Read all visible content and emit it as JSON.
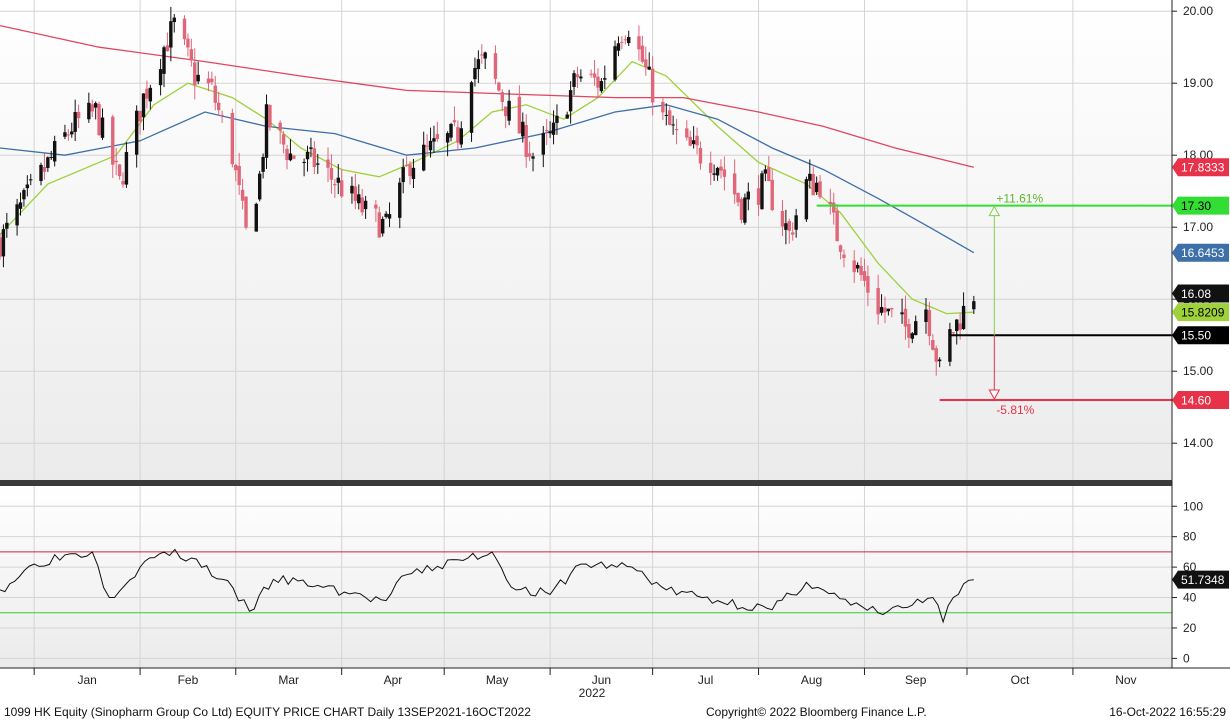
{
  "footer": {
    "left": "1099 HK Equity (Sinopharm Group Co Ltd) EQUITY PRICE CHART  Daily 13SEP2021-16OCT2022",
    "center": "Copyright© 2022 Bloomberg Finance L.P.",
    "right": "16-Oct-2022 16:55:29"
  },
  "colors": {
    "candle_up": "#111111",
    "candle_down": "#e0667a",
    "ma_short": "#9ed13c",
    "ma_mid": "#3d6fa8",
    "ma_long": "#e0455f",
    "level_green": "#33dd33",
    "level_black": "#000000",
    "level_red": "#e8324a",
    "rsi_line": "#111111",
    "rsi_upper": "#c8283c",
    "rsi_lower": "#33cc33"
  },
  "chart_data": [
    {
      "type": "candlestick",
      "panel": "price",
      "x_range": [
        "2021-12-22",
        "2022-11-30"
      ],
      "ylim": [
        13.6,
        20.1
      ],
      "y_ticks": [
        "20.00",
        "19.00",
        "18.00",
        "17.00",
        "16.00",
        "15.00",
        "14.00"
      ],
      "x_ticks": [
        "Jan",
        "Feb",
        "Mar",
        "Apr",
        "May",
        "Jun",
        "Jul",
        "Aug",
        "Sep",
        "Oct",
        "Nov"
      ],
      "x_ticks_dates": [
        "2022-01-01",
        "2022-02-01",
        "2022-03-01",
        "2022-04-01",
        "2022-05-01",
        "2022-06-01",
        "2022-07-01",
        "2022-08-01",
        "2022-09-01",
        "2022-10-01",
        "2022-11-01"
      ],
      "year_label": "2022",
      "tags": [
        {
          "value": "17.8333",
          "y": 17.8333,
          "bg": "#e8324a",
          "fg": "#ffffff"
        },
        {
          "value": "17.30",
          "y": 17.3,
          "bg": "#33dd33",
          "fg": "#000000"
        },
        {
          "value": "16.6453",
          "y": 16.6453,
          "bg": "#3d6fa8",
          "fg": "#ffffff"
        },
        {
          "value": "16.08",
          "y": 16.08,
          "bg": "#111111",
          "fg": "#ffffff"
        },
        {
          "value": "15.8209",
          "y": 15.8209,
          "bg": "#9ed13c",
          "fg": "#000000"
        },
        {
          "value": "15.50",
          "y": 15.5,
          "bg": "#000000",
          "fg": "#ffffff"
        },
        {
          "value": "14.60",
          "y": 14.6,
          "bg": "#e8324a",
          "fg": "#ffffff"
        }
      ],
      "levels": [
        {
          "y": 17.3,
          "from": "2022-08-18",
          "color": "#33dd33"
        },
        {
          "y": 15.5,
          "from": "2022-09-26",
          "color": "#000000"
        },
        {
          "y": 14.6,
          "from": "2022-09-23",
          "color": "#e8324a"
        }
      ],
      "annotations": [
        {
          "text": "+11.61%",
          "x": "2022-10-09",
          "y": 17.3,
          "color": "#5cb82a"
        },
        {
          "text": "-5.81%",
          "x": "2022-10-09",
          "y": 14.6,
          "color": "#e8324a"
        }
      ],
      "anchors": [
        {
          "date": "2021-12-22",
          "close": 16.8
        },
        {
          "date": "2022-01-04",
          "close": 17.8
        },
        {
          "date": "2022-01-12",
          "close": 18.4
        },
        {
          "date": "2022-01-19",
          "close": 18.6
        },
        {
          "date": "2022-01-26",
          "close": 17.6
        },
        {
          "date": "2022-02-02",
          "close": 18.8
        },
        {
          "date": "2022-02-08",
          "close": 19.5
        },
        {
          "date": "2022-02-11",
          "close": 19.8
        },
        {
          "date": "2022-02-17",
          "close": 19.1
        },
        {
          "date": "2022-02-22",
          "close": 18.9
        },
        {
          "date": "2022-02-28",
          "close": 18.0
        },
        {
          "date": "2022-03-04",
          "close": 16.9
        },
        {
          "date": "2022-03-08",
          "close": 17.7
        },
        {
          "date": "2022-03-10",
          "close": 18.5
        },
        {
          "date": "2022-03-17",
          "close": 18.0
        },
        {
          "date": "2022-03-24",
          "close": 17.9
        },
        {
          "date": "2022-03-31",
          "close": 17.6
        },
        {
          "date": "2022-04-08",
          "close": 17.2
        },
        {
          "date": "2022-04-14",
          "close": 17.0
        },
        {
          "date": "2022-04-21",
          "close": 17.9
        },
        {
          "date": "2022-04-28",
          "close": 18.1
        },
        {
          "date": "2022-05-05",
          "close": 18.3
        },
        {
          "date": "2022-05-09",
          "close": 19.2
        },
        {
          "date": "2022-05-13",
          "close": 19.3
        },
        {
          "date": "2022-05-20",
          "close": 18.6
        },
        {
          "date": "2022-05-27",
          "close": 18.0
        },
        {
          "date": "2022-06-02",
          "close": 18.3
        },
        {
          "date": "2022-06-09",
          "close": 19.1
        },
        {
          "date": "2022-06-16",
          "close": 19.0
        },
        {
          "date": "2022-06-21",
          "close": 19.7
        },
        {
          "date": "2022-06-24",
          "close": 19.8
        },
        {
          "date": "2022-06-28",
          "close": 19.3
        },
        {
          "date": "2022-07-04",
          "close": 18.5
        },
        {
          "date": "2022-07-11",
          "close": 18.1
        },
        {
          "date": "2022-07-20",
          "close": 17.9
        },
        {
          "date": "2022-07-27",
          "close": 17.3
        },
        {
          "date": "2022-08-03",
          "close": 17.6
        },
        {
          "date": "2022-08-10",
          "close": 16.9
        },
        {
          "date": "2022-08-15",
          "close": 17.6
        },
        {
          "date": "2022-08-19",
          "close": 17.6
        },
        {
          "date": "2022-08-24",
          "close": 16.9
        },
        {
          "date": "2022-08-30",
          "close": 16.4
        },
        {
          "date": "2022-09-05",
          "close": 15.9
        },
        {
          "date": "2022-09-13",
          "close": 15.6
        },
        {
          "date": "2022-09-19",
          "close": 15.9
        },
        {
          "date": "2022-09-23",
          "close": 15.0
        },
        {
          "date": "2022-09-26",
          "close": 15.5
        },
        {
          "date": "2022-10-03",
          "close": 16.08
        }
      ],
      "series": [
        {
          "role": "ma_short",
          "points": [
            [
              "2021-12-22",
              16.9
            ],
            [
              "2022-01-05",
              17.6
            ],
            [
              "2022-01-25",
              18.0
            ],
            [
              "2022-02-05",
              18.7
            ],
            [
              "2022-02-15",
              19.0
            ],
            [
              "2022-02-28",
              18.8
            ],
            [
              "2022-03-10",
              18.5
            ],
            [
              "2022-03-20",
              18.1
            ],
            [
              "2022-04-01",
              17.8
            ],
            [
              "2022-04-12",
              17.7
            ],
            [
              "2022-04-22",
              17.9
            ],
            [
              "2022-05-05",
              18.2
            ],
            [
              "2022-05-15",
              18.6
            ],
            [
              "2022-05-25",
              18.7
            ],
            [
              "2022-06-05",
              18.5
            ],
            [
              "2022-06-15",
              18.8
            ],
            [
              "2022-06-25",
              19.3
            ],
            [
              "2022-07-05",
              19.1
            ],
            [
              "2022-07-20",
              18.4
            ],
            [
              "2022-08-01",
              17.9
            ],
            [
              "2022-08-15",
              17.6
            ],
            [
              "2022-08-25",
              17.2
            ],
            [
              "2022-09-05",
              16.5
            ],
            [
              "2022-09-15",
              16.0
            ],
            [
              "2022-09-25",
              15.8
            ],
            [
              "2022-10-03",
              15.82
            ]
          ]
        },
        {
          "role": "ma_mid",
          "points": [
            [
              "2021-12-22",
              18.1
            ],
            [
              "2022-01-10",
              18.0
            ],
            [
              "2022-02-01",
              18.2
            ],
            [
              "2022-02-20",
              18.6
            ],
            [
              "2022-03-10",
              18.4
            ],
            [
              "2022-03-30",
              18.3
            ],
            [
              "2022-04-20",
              18.0
            ],
            [
              "2022-05-10",
              18.1
            ],
            [
              "2022-05-30",
              18.3
            ],
            [
              "2022-06-20",
              18.6
            ],
            [
              "2022-07-05",
              18.7
            ],
            [
              "2022-07-20",
              18.5
            ],
            [
              "2022-08-05",
              18.1
            ],
            [
              "2022-08-20",
              17.8
            ],
            [
              "2022-09-05",
              17.4
            ],
            [
              "2022-09-20",
              17.0
            ],
            [
              "2022-10-03",
              16.6453
            ]
          ]
        },
        {
          "role": "ma_long",
          "points": [
            [
              "2021-12-22",
              19.8
            ],
            [
              "2022-01-20",
              19.5
            ],
            [
              "2022-02-20",
              19.3
            ],
            [
              "2022-03-20",
              19.1
            ],
            [
              "2022-04-20",
              18.9
            ],
            [
              "2022-05-20",
              18.85
            ],
            [
              "2022-06-20",
              18.8
            ],
            [
              "2022-07-10",
              18.8
            ],
            [
              "2022-08-01",
              18.6
            ],
            [
              "2022-08-20",
              18.4
            ],
            [
              "2022-09-10",
              18.1
            ],
            [
              "2022-10-03",
              17.8333
            ]
          ]
        }
      ]
    },
    {
      "type": "line",
      "panel": "rsi",
      "ylim": [
        -5,
        112
      ],
      "y_ticks": [
        "100",
        "80",
        "60",
        "40",
        "20",
        "0"
      ],
      "reference_lines": [
        70,
        30
      ],
      "last_value": "51.7348",
      "points": [
        [
          "2021-12-22",
          45
        ],
        [
          "2022-01-01",
          62
        ],
        [
          "2022-01-10",
          68
        ],
        [
          "2022-01-18",
          70
        ],
        [
          "2022-01-23",
          40
        ],
        [
          "2022-02-01",
          60
        ],
        [
          "2022-02-08",
          70
        ],
        [
          "2022-02-16",
          66
        ],
        [
          "2022-02-25",
          52
        ],
        [
          "2022-03-05",
          31
        ],
        [
          "2022-03-12",
          52
        ],
        [
          "2022-03-25",
          48
        ],
        [
          "2022-04-08",
          40
        ],
        [
          "2022-04-14",
          38
        ],
        [
          "2022-04-20",
          55
        ],
        [
          "2022-05-08",
          66
        ],
        [
          "2022-05-15",
          70
        ],
        [
          "2022-05-22",
          45
        ],
        [
          "2022-06-01",
          42
        ],
        [
          "2022-06-10",
          62
        ],
        [
          "2022-06-25",
          60
        ],
        [
          "2022-07-05",
          45
        ],
        [
          "2022-07-20",
          38
        ],
        [
          "2022-08-05",
          32
        ],
        [
          "2022-08-15",
          50
        ],
        [
          "2022-08-20",
          45
        ],
        [
          "2022-08-28",
          35
        ],
        [
          "2022-09-05",
          30
        ],
        [
          "2022-09-15",
          35
        ],
        [
          "2022-09-21",
          40
        ],
        [
          "2022-09-24",
          24
        ],
        [
          "2022-09-27",
          40
        ],
        [
          "2022-10-03",
          51.7348
        ]
      ]
    }
  ]
}
